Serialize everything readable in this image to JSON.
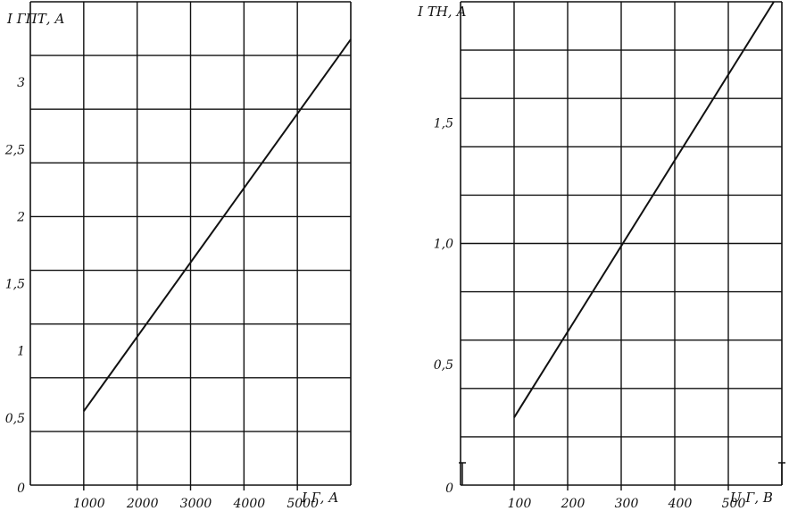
{
  "chart_data": [
    {
      "type": "line",
      "title": "",
      "ylabel": "I ГПТ, А",
      "xlabel": "I Г, А",
      "xlim": [
        0,
        6000
      ],
      "ylim": [
        0,
        3.6
      ],
      "grid": true,
      "x_ticks": [
        1000,
        2000,
        3000,
        4000,
        5000
      ],
      "x_tick_labels": [
        "1000",
        "2000",
        "3000",
        "4000",
        "5000"
      ],
      "y_ticks": [
        0,
        0.5,
        1,
        1.5,
        2,
        2.5,
        3
      ],
      "y_tick_labels": [
        "0",
        "0,5",
        "1",
        "1,5",
        "2",
        "2,5",
        "3"
      ],
      "series": [
        {
          "x": [
            1000,
            6000
          ],
          "y": [
            0.55,
            3.32
          ]
        }
      ]
    },
    {
      "type": "line",
      "title": "",
      "ylabel": "I ТН, А",
      "xlabel": "U Г, В",
      "xlim": [
        0,
        600
      ],
      "ylim": [
        0,
        2.0
      ],
      "grid": true,
      "x_ticks": [
        100,
        200,
        300,
        400,
        500
      ],
      "x_tick_labels": [
        "100",
        "200",
        "300",
        "400",
        "500"
      ],
      "y_ticks": [
        0,
        0.5,
        1.0,
        1.5
      ],
      "y_tick_labels": [
        "0",
        "0,5",
        "1,0",
        "1,5"
      ],
      "series": [
        {
          "x": [
            100,
            585
          ],
          "y": [
            0.28,
            2.0
          ]
        }
      ]
    }
  ]
}
